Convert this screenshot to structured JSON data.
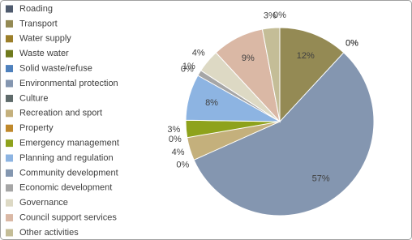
{
  "chart_data": {
    "type": "pie",
    "categories": [
      "Roading",
      "Transport",
      "Water supply",
      "Waste water",
      "Solid waste/refuse",
      "Environmental protection",
      "Culture",
      "Recreation and sport",
      "Property",
      "Emergency management",
      "Planning and regulation",
      "Community development",
      "Economic development",
      "Governance",
      "Council support services",
      "Other activities"
    ],
    "values": [
      0,
      12,
      0,
      0,
      0,
      57,
      0,
      4,
      0,
      3,
      8,
      0,
      1,
      4,
      9,
      3
    ],
    "value_labels": [
      "0%",
      "12%",
      "0%",
      "0%",
      "0%",
      "57%",
      "0%",
      "4%",
      "0%",
      "3%",
      "8%",
      "0%",
      "1%",
      "4%",
      "9%",
      "3%"
    ],
    "colors": [
      "#4f5b6e",
      "#948a54",
      "#9c7f2a",
      "#6f7a1d",
      "#4f81bd",
      "#8496b0",
      "#5f6b6b",
      "#c4b07c",
      "#c0892c",
      "#8ea21c",
      "#8db4e2",
      "#8497b0",
      "#a6a6a6",
      "#ddd9c4",
      "#dab8a5",
      "#c4bd97"
    ],
    "legend": "left"
  }
}
